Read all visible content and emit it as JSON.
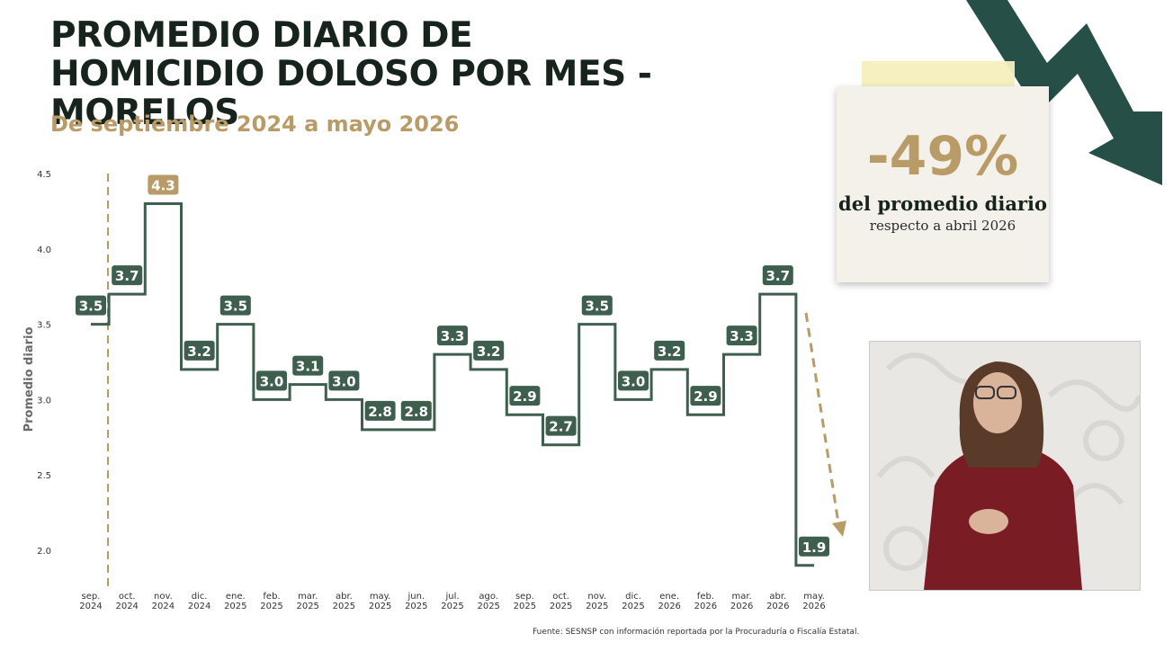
{
  "title": "PROMEDIO DIARIO DE HOMICIDIO DOLOSO POR MES - MORELOS",
  "subtitle": "De septiembre 2024 a mayo 2026",
  "stat": {
    "value": "-49%",
    "line1": "del promedio diario",
    "line2": "respecto a abril 2026"
  },
  "source": "Fuente: SESNSP con información reportada por la Procuraduría o Fiscalía Estatal.",
  "colors": {
    "line": "#3e5e4e",
    "highlight": "#b89b66",
    "title": "#17231d",
    "axis_text": "#333333"
  },
  "chart_data": {
    "type": "line",
    "step": true,
    "categories": [
      "sep. 2024",
      "oct. 2024",
      "nov. 2024",
      "dic. 2024",
      "ene. 2025",
      "feb. 2025",
      "mar. 2025",
      "abr. 2025",
      "may. 2025",
      "jun. 2025",
      "jul. 2025",
      "ago. 2025",
      "sep. 2025",
      "oct. 2025",
      "nov. 2025",
      "dic. 2025",
      "ene. 2026",
      "feb. 2026",
      "mar. 2026",
      "abr. 2026",
      "may. 2026"
    ],
    "values": [
      3.5,
      3.7,
      4.3,
      3.2,
      3.5,
      3.0,
      3.1,
      3.0,
      2.8,
      2.8,
      3.3,
      3.2,
      2.9,
      2.7,
      3.5,
      3.0,
      3.2,
      2.9,
      3.3,
      3.7,
      1.9
    ],
    "highlight_index": 2,
    "ylabel": "Promedio diario",
    "xlabel": "",
    "ylim": [
      1.9,
      4.5
    ],
    "yticks": [
      2.0,
      2.5,
      3.0,
      3.5,
      4.0,
      4.5
    ],
    "ytick_labels": [
      "2.0",
      "2.5",
      "3.0",
      "3.5",
      "4.0",
      "4.5"
    ],
    "grid": false,
    "legend": "none"
  }
}
